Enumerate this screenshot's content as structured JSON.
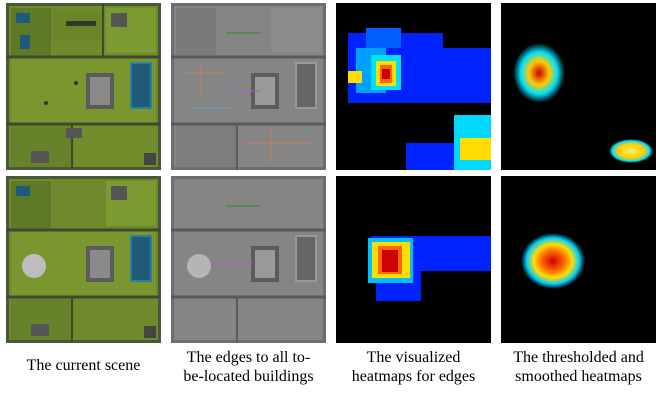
{
  "captions": [
    {
      "lines": [
        "The current scene",
        ""
      ]
    },
    {
      "lines": [
        "The edges to all to-",
        "be-located buildings"
      ]
    },
    {
      "lines": [
        "The visualized",
        "heatmaps for edges"
      ]
    },
    {
      "lines": [
        "The thresholded and",
        "smoothed heatmaps"
      ]
    }
  ],
  "colors": {
    "grass": "#7a8c2e",
    "grass_dark": "#5d6b24",
    "road": "#4c5a3e",
    "water": "#1f5a78",
    "gray_map": "#7d7d7d",
    "heat_bg": "#000000",
    "heat_low": "#0022ff",
    "heat_mid": "#00d8ff",
    "heat_high": "#ffdd00",
    "heat_peak": "#cc0000"
  }
}
